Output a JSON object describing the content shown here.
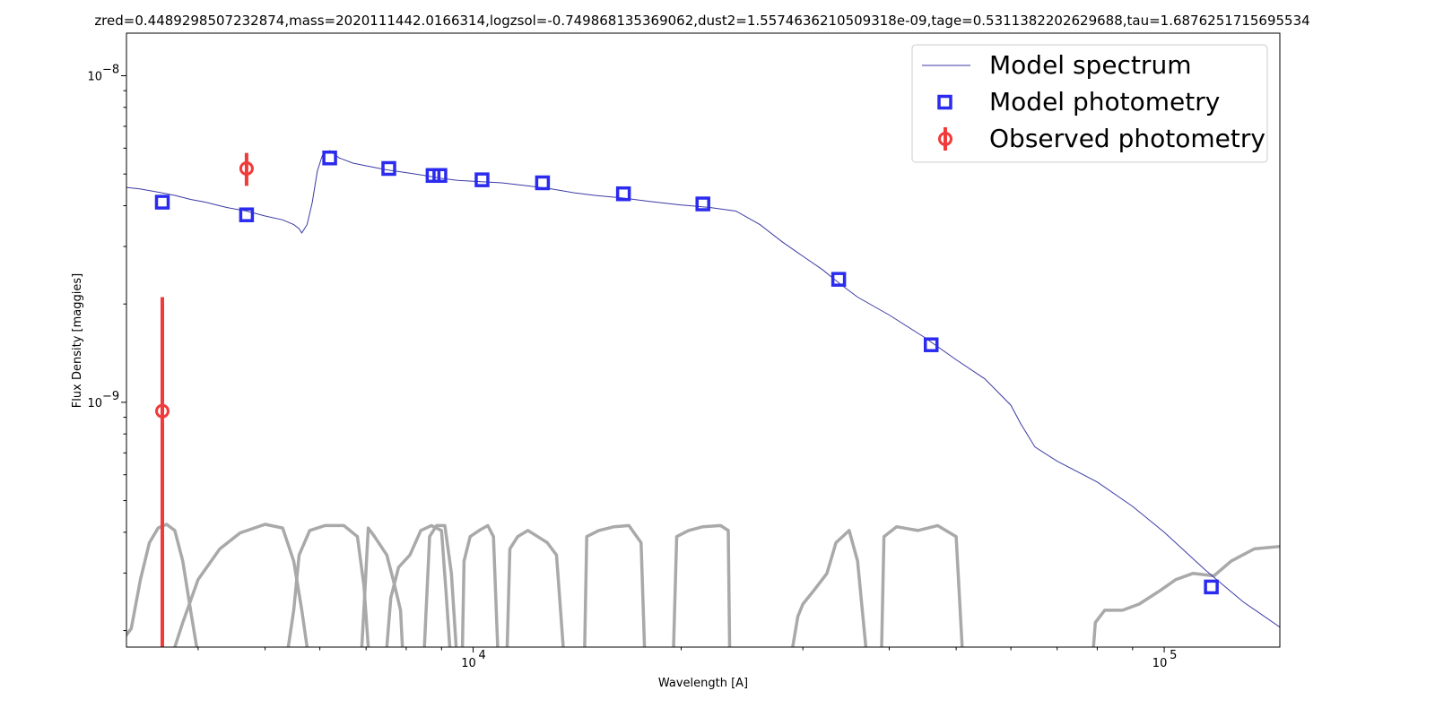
{
  "chart_data": {
    "type": "line",
    "title": "zred=0.4489298507232874,mass=2020111442.0166314,logzsol=-0.749868135369062,dust2=1.5574636210509318e-09,tage=0.5311382202629688,tau=1.6876251715695534",
    "xlabel": "Wavelength [A]",
    "ylabel": "Flux Density [maggies]",
    "xscale": "log",
    "yscale": "log",
    "xlim": [
      3150,
      147000
    ],
    "ylim": [
      1.78e-10,
      1.35e-08
    ],
    "grid": false,
    "legend_position": "top-right",
    "x_tick_labels": [
      {
        "value": 10000,
        "base": "10",
        "exp": "4"
      },
      {
        "value": 100000,
        "base": "10",
        "exp": "5"
      }
    ],
    "y_tick_labels": [
      {
        "value": 1e-08,
        "base": "10",
        "exp": "−8"
      },
      {
        "value": 1e-09,
        "base": "10",
        "exp": "−9"
      }
    ],
    "colors": {
      "model_spectrum": "#3a3aa5",
      "model_photometry": "#2b2bef",
      "observed_photometry": "#f13a3a",
      "filters": "#a9a9a9"
    },
    "series": [
      {
        "name": "Model spectrum",
        "kind": "line",
        "points": [
          [
            3150,
            4.55e-09
          ],
          [
            3300,
            4.5e-09
          ],
          [
            3500,
            4.4e-09
          ],
          [
            3700,
            4.3e-09
          ],
          [
            3900,
            4.18e-09
          ],
          [
            4100,
            4.1e-09
          ],
          [
            4400,
            3.95e-09
          ],
          [
            4700,
            3.85e-09
          ],
          [
            5000,
            3.72e-09
          ],
          [
            5300,
            3.62e-09
          ],
          [
            5500,
            3.5e-09
          ],
          [
            5600,
            3.4e-09
          ],
          [
            5650,
            3.3e-09
          ],
          [
            5750,
            3.5e-09
          ],
          [
            5850,
            4.1e-09
          ],
          [
            5950,
            5.1e-09
          ],
          [
            6050,
            5.7e-09
          ],
          [
            6200,
            5.9e-09
          ],
          [
            6400,
            5.6e-09
          ],
          [
            6700,
            5.4e-09
          ],
          [
            7000,
            5.3e-09
          ],
          [
            7500,
            5.15e-09
          ],
          [
            8000,
            5.05e-09
          ],
          [
            8500,
            4.95e-09
          ],
          [
            9000,
            4.85e-09
          ],
          [
            9500,
            4.78e-09
          ],
          [
            10000,
            4.75e-09
          ],
          [
            11000,
            4.7e-09
          ],
          [
            12000,
            4.6e-09
          ],
          [
            13000,
            4.5e-09
          ],
          [
            14000,
            4.38e-09
          ],
          [
            15000,
            4.3e-09
          ],
          [
            16500,
            4.22e-09
          ],
          [
            18000,
            4.12e-09
          ],
          [
            20000,
            4.02e-09
          ],
          [
            22000,
            3.95e-09
          ],
          [
            24000,
            3.85e-09
          ],
          [
            26000,
            3.5e-09
          ],
          [
            28000,
            3.1e-09
          ],
          [
            30000,
            2.8e-09
          ],
          [
            32000,
            2.55e-09
          ],
          [
            34000,
            2.3e-09
          ],
          [
            36000,
            2.1e-09
          ],
          [
            40000,
            1.85e-09
          ],
          [
            45000,
            1.58e-09
          ],
          [
            50000,
            1.35e-09
          ],
          [
            55000,
            1.18e-09
          ],
          [
            60000,
            9.8e-10
          ],
          [
            62000,
            8.6e-10
          ],
          [
            65000,
            7.3e-10
          ],
          [
            70000,
            6.6e-10
          ],
          [
            80000,
            5.7e-10
          ],
          [
            90000,
            4.8e-10
          ],
          [
            100000,
            4e-10
          ],
          [
            115000,
            3.05e-10
          ],
          [
            130000,
            2.45e-10
          ],
          [
            147000,
            2.05e-10
          ]
        ]
      },
      {
        "name": "Model photometry",
        "kind": "markers",
        "points": [
          [
            3550,
            4.1e-09
          ],
          [
            4700,
            3.75e-09
          ],
          [
            6200,
            5.6e-09
          ],
          [
            7550,
            5.2e-09
          ],
          [
            8750,
            4.95e-09
          ],
          [
            8950,
            4.95e-09
          ],
          [
            10300,
            4.8e-09
          ],
          [
            12600,
            4.7e-09
          ],
          [
            16500,
            4.35e-09
          ],
          [
            21500,
            4.05e-09
          ],
          [
            33800,
            2.38e-09
          ],
          [
            46000,
            1.5e-09
          ],
          [
            117000,
            2.72e-10
          ]
        ]
      },
      {
        "name": "Observed photometry",
        "kind": "errorbar",
        "points": [
          {
            "x": 3550,
            "y": 9.4e-10,
            "ylow": 1.78e-10,
            "yhigh": 2.1e-09
          },
          {
            "x": 4700,
            "y": 5.2e-09,
            "ylow": 4.6e-09,
            "yhigh": 5.8e-09
          }
        ]
      }
    ],
    "filter_curves": [
      {
        "points": [
          [
            3050,
            0.0
          ],
          [
            3200,
            0.15
          ],
          [
            3300,
            0.55
          ],
          [
            3400,
            0.85
          ],
          [
            3500,
            0.97
          ],
          [
            3600,
            1.0
          ],
          [
            3700,
            0.95
          ],
          [
            3800,
            0.7
          ],
          [
            3900,
            0.3
          ],
          [
            3980,
            0.0
          ]
        ]
      },
      {
        "points": [
          [
            3700,
            0.0
          ],
          [
            3800,
            0.2
          ],
          [
            4000,
            0.55
          ],
          [
            4300,
            0.8
          ],
          [
            4600,
            0.93
          ],
          [
            5000,
            1.0
          ],
          [
            5300,
            0.97
          ],
          [
            5500,
            0.7
          ],
          [
            5650,
            0.3
          ],
          [
            5750,
            0.0
          ]
        ]
      },
      {
        "points": [
          [
            5400,
            0.0
          ],
          [
            5500,
            0.3
          ],
          [
            5600,
            0.75
          ],
          [
            5800,
            0.95
          ],
          [
            6100,
            0.99
          ],
          [
            6500,
            0.99
          ],
          [
            6800,
            0.9
          ],
          [
            6950,
            0.5
          ],
          [
            7050,
            0.0
          ]
        ]
      },
      {
        "points": [
          [
            6900,
            0.0
          ],
          [
            6980,
            0.5
          ],
          [
            7050,
            0.97
          ],
          [
            7200,
            0.9
          ],
          [
            7500,
            0.75
          ],
          [
            7700,
            0.5
          ],
          [
            7850,
            0.3
          ],
          [
            7900,
            0.0
          ]
        ]
      },
      {
        "points": [
          [
            7500,
            0.0
          ],
          [
            7600,
            0.4
          ],
          [
            7800,
            0.65
          ],
          [
            8100,
            0.75
          ],
          [
            8400,
            0.95
          ],
          [
            8700,
            0.99
          ],
          [
            9000,
            0.95
          ],
          [
            9150,
            0.4
          ],
          [
            9250,
            0.0
          ]
        ]
      },
      {
        "points": [
          [
            8500,
            0.0
          ],
          [
            8650,
            0.9
          ],
          [
            8850,
            0.99
          ],
          [
            9100,
            0.99
          ],
          [
            9300,
            0.6
          ],
          [
            9450,
            0.0
          ]
        ]
      },
      {
        "points": [
          [
            9650,
            0.0
          ],
          [
            9700,
            0.7
          ],
          [
            9900,
            0.9
          ],
          [
            10200,
            0.95
          ],
          [
            10500,
            0.99
          ],
          [
            10700,
            0.9
          ],
          [
            10850,
            0.0
          ]
        ]
      },
      {
        "points": [
          [
            11200,
            0.0
          ],
          [
            11300,
            0.8
          ],
          [
            11600,
            0.9
          ],
          [
            12000,
            0.95
          ],
          [
            12400,
            0.9
          ],
          [
            12800,
            0.85
          ],
          [
            13200,
            0.75
          ],
          [
            13500,
            0.0
          ]
        ]
      },
      {
        "points": [
          [
            14500,
            0.0
          ],
          [
            14600,
            0.9
          ],
          [
            15200,
            0.95
          ],
          [
            16000,
            0.98
          ],
          [
            16800,
            0.99
          ],
          [
            17500,
            0.85
          ],
          [
            17700,
            0.0
          ]
        ]
      },
      {
        "points": [
          [
            19500,
            0.0
          ],
          [
            19700,
            0.9
          ],
          [
            20500,
            0.95
          ],
          [
            21500,
            0.98
          ],
          [
            22800,
            0.99
          ],
          [
            23400,
            0.95
          ],
          [
            23500,
            0.0
          ]
        ]
      },
      {
        "points": [
          [
            29000,
            0.0
          ],
          [
            29500,
            0.25
          ],
          [
            30000,
            0.35
          ],
          [
            31000,
            0.45
          ],
          [
            32500,
            0.6
          ],
          [
            33500,
            0.85
          ],
          [
            35000,
            0.95
          ],
          [
            36000,
            0.7
          ],
          [
            37000,
            0.0
          ]
        ]
      },
      {
        "points": [
          [
            39000,
            0.0
          ],
          [
            39300,
            0.9
          ],
          [
            41000,
            0.98
          ],
          [
            44000,
            0.95
          ],
          [
            47000,
            0.99
          ],
          [
            50000,
            0.9
          ],
          [
            51000,
            0.0
          ]
        ]
      },
      {
        "points": [
          [
            79000,
            0.0
          ],
          [
            79500,
            0.2
          ],
          [
            82000,
            0.3
          ],
          [
            87000,
            0.3
          ],
          [
            92000,
            0.35
          ],
          [
            98000,
            0.45
          ],
          [
            104000,
            0.55
          ],
          [
            110000,
            0.6
          ],
          [
            118000,
            0.58
          ],
          [
            125000,
            0.7
          ],
          [
            135000,
            0.8
          ],
          [
            147000,
            0.82
          ]
        ]
      }
    ]
  },
  "legend": {
    "entries": [
      "Model spectrum",
      "Model photometry",
      "Observed photometry"
    ]
  }
}
